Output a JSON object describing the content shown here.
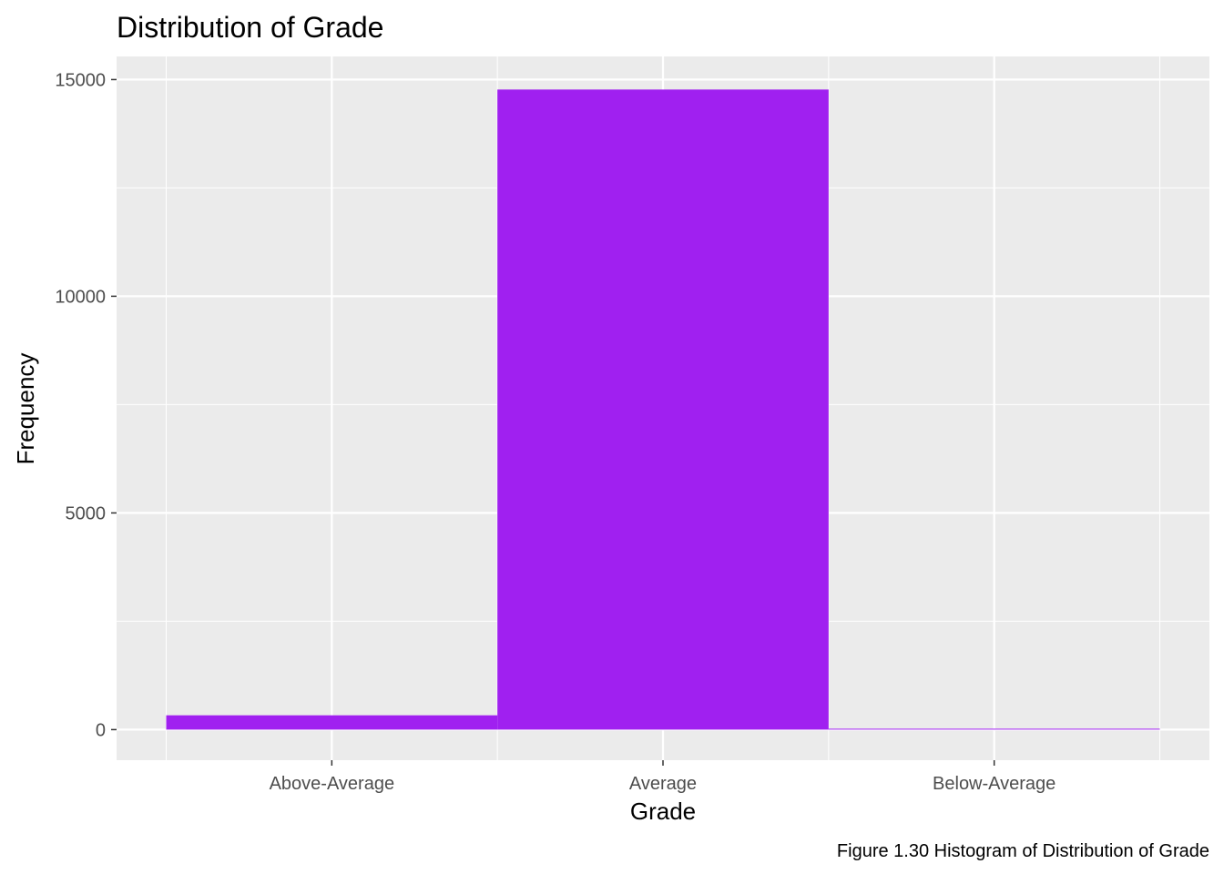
{
  "chart_data": {
    "type": "bar",
    "title": "Distribution of Grade",
    "xlabel": "Grade",
    "ylabel": "Frequency",
    "caption": "Figure 1.30 Histogram of Distribution of Grade",
    "categories": [
      "Above-Average",
      "Average",
      "Below-Average"
    ],
    "values": [
      330,
      14770,
      10
    ],
    "ylim": [
      -700,
      15500
    ],
    "yticks": [
      0,
      5000,
      10000,
      15000
    ],
    "ytick_labels": [
      "0",
      "5000",
      "10000",
      "15000"
    ],
    "grid": true,
    "colors": {
      "bar": "#a020f0",
      "panel": "#ebebeb",
      "grid": "#ffffff"
    }
  }
}
